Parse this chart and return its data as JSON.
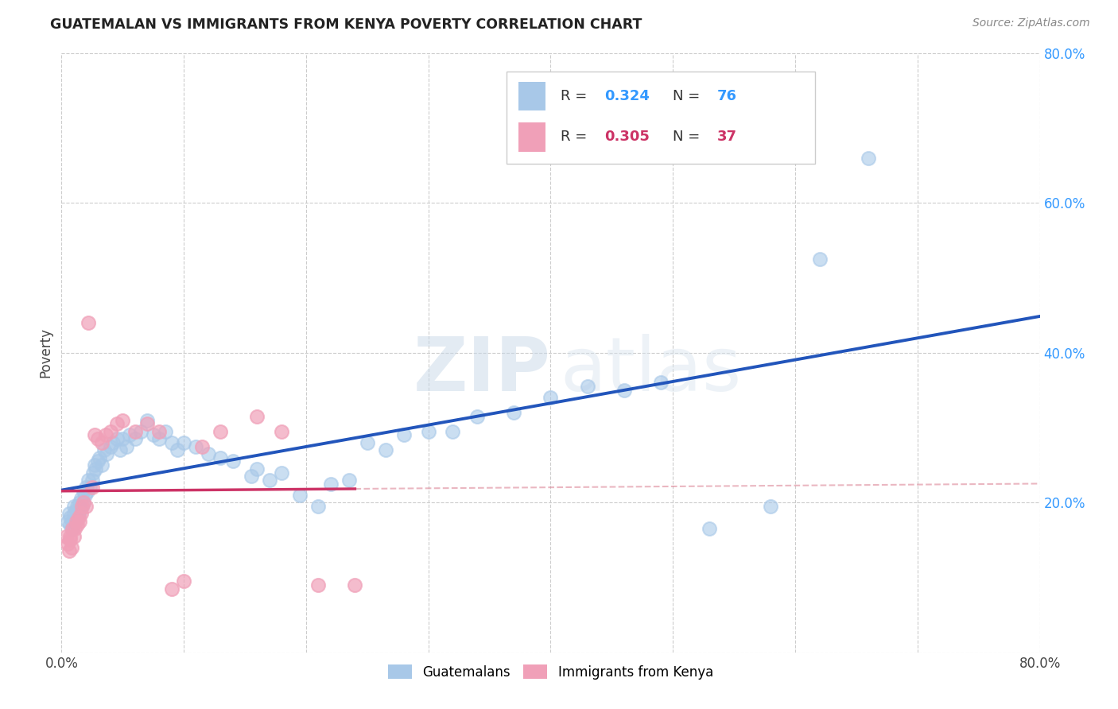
{
  "title": "GUATEMALAN VS IMMIGRANTS FROM KENYA POVERTY CORRELATION CHART",
  "source": "Source: ZipAtlas.com",
  "ylabel": "Poverty",
  "xlim": [
    0.0,
    0.8
  ],
  "ylim": [
    0.0,
    0.8
  ],
  "xtick_positions": [
    0.0,
    0.1,
    0.2,
    0.3,
    0.4,
    0.5,
    0.6,
    0.7,
    0.8
  ],
  "xticklabels": [
    "0.0%",
    "",
    "",
    "",
    "",
    "",
    "",
    "",
    "80.0%"
  ],
  "ytick_right_positions": [
    0.0,
    0.2,
    0.4,
    0.6,
    0.8
  ],
  "yticklabels_right": [
    "",
    "20.0%",
    "40.0%",
    "60.0%",
    "80.0%"
  ],
  "blue_R": "0.324",
  "blue_N": "76",
  "pink_R": "0.305",
  "pink_N": "37",
  "blue_color": "#A8C8E8",
  "pink_color": "#F0A0B8",
  "blue_line_color": "#2255BB",
  "pink_line_color": "#CC3366",
  "pink_dash_color": "#DD8899",
  "grid_color": "#CCCCCC",
  "watermark_zip": "ZIP",
  "watermark_atlas": "atlas",
  "legend_label_1": "Guatemalans",
  "legend_label_2": "Immigrants from Kenya",
  "blue_scatter_x": [
    0.005,
    0.006,
    0.007,
    0.007,
    0.008,
    0.009,
    0.01,
    0.01,
    0.011,
    0.012,
    0.013,
    0.013,
    0.014,
    0.015,
    0.015,
    0.016,
    0.017,
    0.018,
    0.018,
    0.019,
    0.02,
    0.021,
    0.022,
    0.023,
    0.025,
    0.026,
    0.027,
    0.028,
    0.03,
    0.031,
    0.033,
    0.035,
    0.037,
    0.04,
    0.042,
    0.045,
    0.048,
    0.05,
    0.053,
    0.056,
    0.06,
    0.065,
    0.07,
    0.075,
    0.08,
    0.085,
    0.09,
    0.095,
    0.1,
    0.11,
    0.12,
    0.13,
    0.14,
    0.155,
    0.16,
    0.17,
    0.18,
    0.195,
    0.21,
    0.22,
    0.235,
    0.25,
    0.265,
    0.28,
    0.3,
    0.32,
    0.34,
    0.37,
    0.4,
    0.43,
    0.46,
    0.49,
    0.53,
    0.58,
    0.62,
    0.66
  ],
  "blue_scatter_y": [
    0.175,
    0.185,
    0.17,
    0.18,
    0.165,
    0.175,
    0.185,
    0.195,
    0.175,
    0.19,
    0.18,
    0.195,
    0.185,
    0.2,
    0.19,
    0.205,
    0.195,
    0.2,
    0.215,
    0.21,
    0.22,
    0.215,
    0.23,
    0.22,
    0.23,
    0.24,
    0.25,
    0.245,
    0.255,
    0.26,
    0.25,
    0.27,
    0.265,
    0.275,
    0.28,
    0.285,
    0.27,
    0.285,
    0.275,
    0.29,
    0.285,
    0.295,
    0.31,
    0.29,
    0.285,
    0.295,
    0.28,
    0.27,
    0.28,
    0.275,
    0.265,
    0.26,
    0.255,
    0.235,
    0.245,
    0.23,
    0.24,
    0.21,
    0.195,
    0.225,
    0.23,
    0.28,
    0.27,
    0.29,
    0.295,
    0.295,
    0.315,
    0.32,
    0.34,
    0.355,
    0.35,
    0.36,
    0.165,
    0.195,
    0.525,
    0.66
  ],
  "pink_scatter_x": [
    0.004,
    0.005,
    0.006,
    0.007,
    0.007,
    0.008,
    0.009,
    0.01,
    0.011,
    0.012,
    0.013,
    0.014,
    0.015,
    0.016,
    0.017,
    0.018,
    0.02,
    0.022,
    0.025,
    0.027,
    0.03,
    0.033,
    0.036,
    0.04,
    0.045,
    0.05,
    0.06,
    0.07,
    0.08,
    0.09,
    0.1,
    0.115,
    0.13,
    0.16,
    0.18,
    0.21,
    0.24
  ],
  "pink_scatter_y": [
    0.155,
    0.145,
    0.135,
    0.155,
    0.15,
    0.14,
    0.165,
    0.155,
    0.165,
    0.175,
    0.17,
    0.18,
    0.175,
    0.185,
    0.195,
    0.2,
    0.195,
    0.44,
    0.22,
    0.29,
    0.285,
    0.28,
    0.29,
    0.295,
    0.305,
    0.31,
    0.295,
    0.305,
    0.295,
    0.085,
    0.095,
    0.275,
    0.295,
    0.315,
    0.295,
    0.09,
    0.09
  ]
}
